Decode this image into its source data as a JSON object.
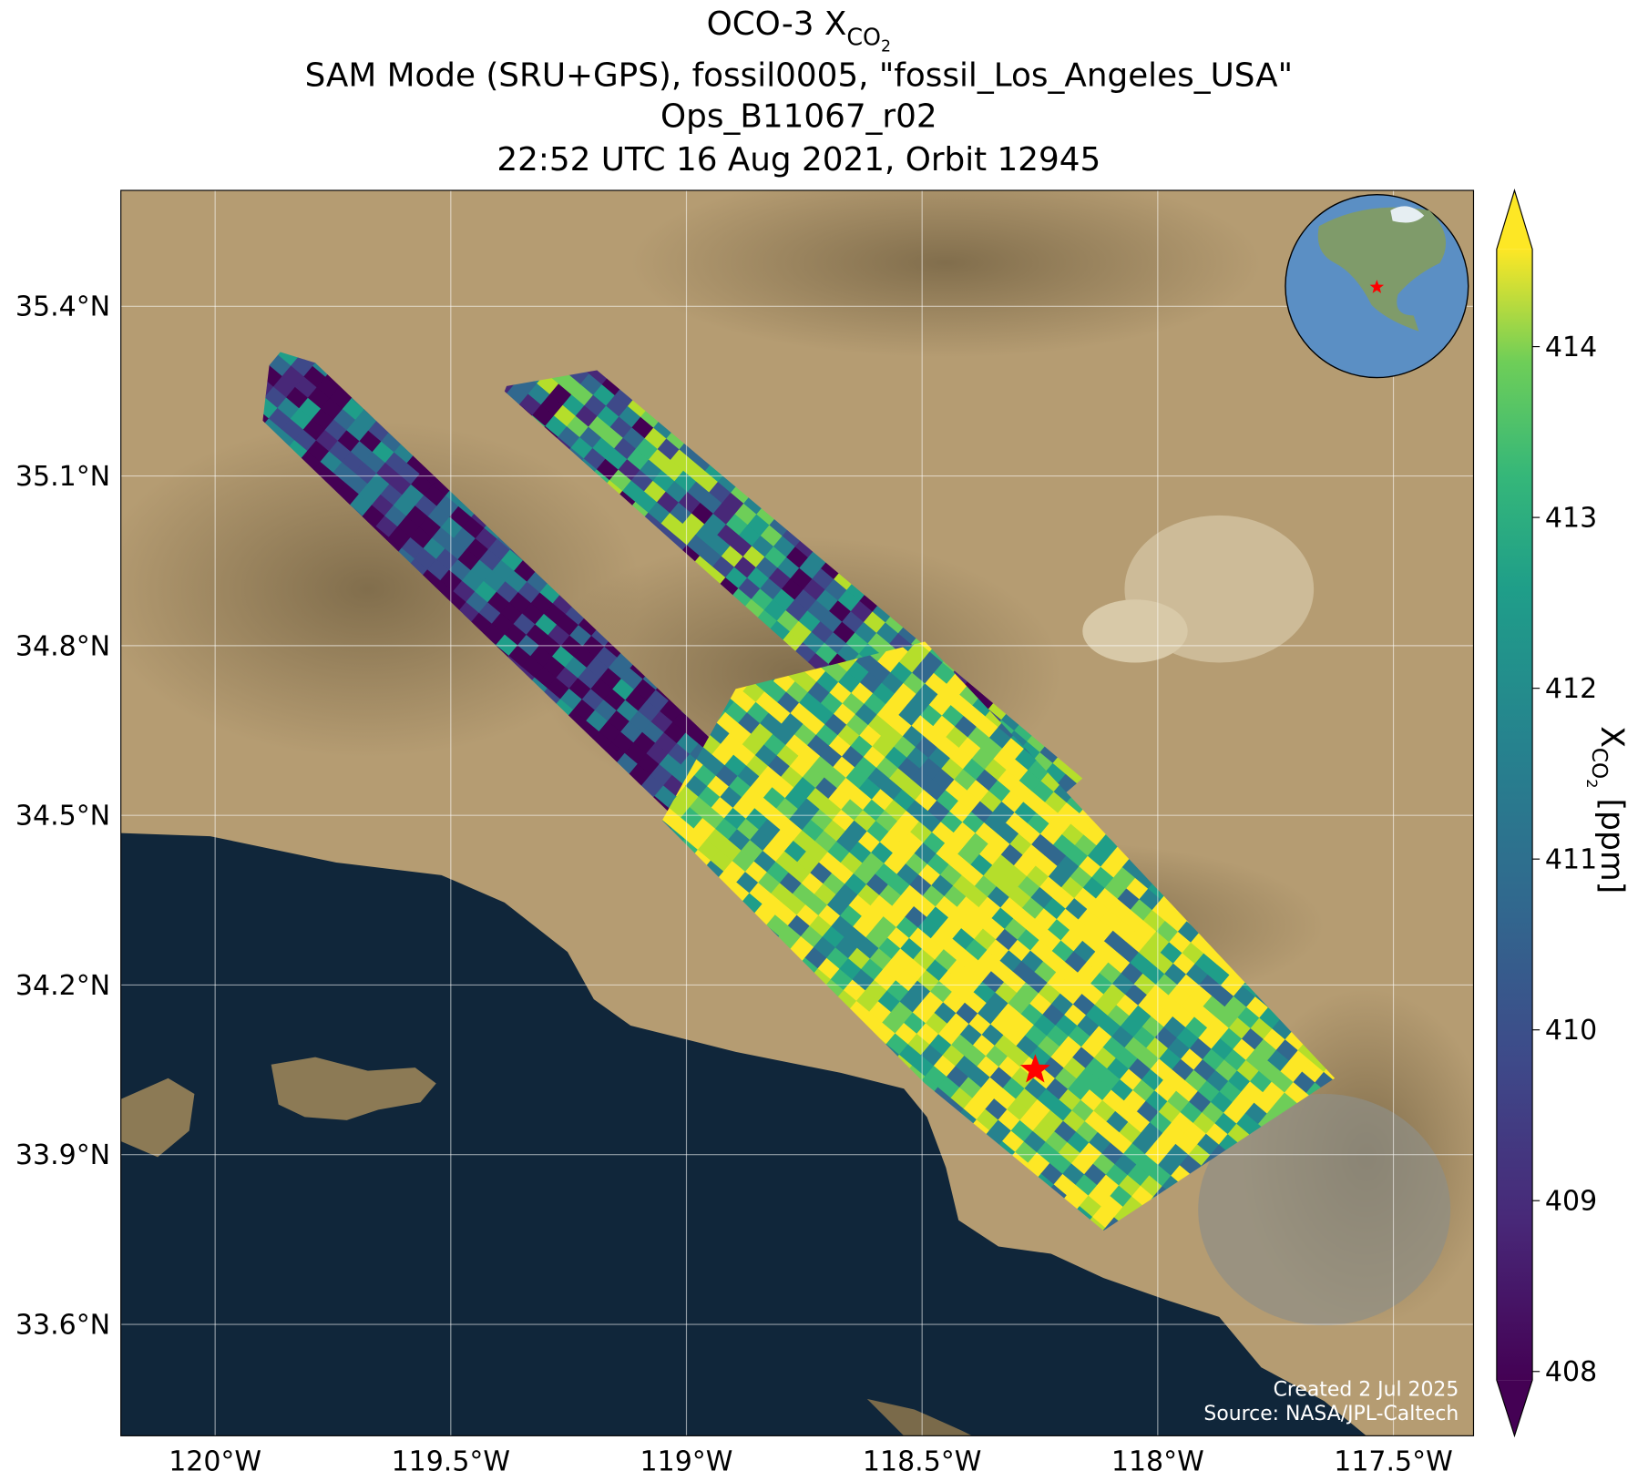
{
  "title": {
    "line1": {
      "text": "OCO-3 X",
      "sub": "CO",
      "subsub": "2"
    },
    "line2": "SAM Mode (SRU+GPS), fossil0005, \"fossil_Los_Angeles_USA\"",
    "line3": "Ops_B11067_r02",
    "line4": "22:52 UTC 16 Aug 2021, Orbit 12945"
  },
  "map": {
    "xlim": [
      -120.2,
      -117.33
    ],
    "ylim": [
      33.403,
      35.605
    ],
    "xticks": [
      {
        "value": -120,
        "label": "120°W"
      },
      {
        "value": -119.5,
        "label": "119.5°W"
      },
      {
        "value": -119,
        "label": "119°W"
      },
      {
        "value": -118.5,
        "label": "118.5°W"
      },
      {
        "value": -118,
        "label": "118°W"
      },
      {
        "value": -117.5,
        "label": "117.5°W"
      }
    ],
    "yticks": [
      {
        "value": 33.6,
        "label": "33.6°N"
      },
      {
        "value": 33.9,
        "label": "33.9°N"
      },
      {
        "value": 34.2,
        "label": "34.2°N"
      },
      {
        "value": 34.5,
        "label": "34.5°N"
      },
      {
        "value": 34.8,
        "label": "34.8°N"
      },
      {
        "value": 35.1,
        "label": "35.1°N"
      },
      {
        "value": 35.4,
        "label": "35.4°N"
      }
    ],
    "grid": true,
    "target": {
      "lon": -118.26,
      "lat": 34.05,
      "color": "#ff0000"
    }
  },
  "colorbar": {
    "lim": [
      407.95,
      414.57
    ],
    "ticks": [
      408,
      409,
      410,
      411,
      412,
      413,
      414
    ],
    "label": {
      "text": "X",
      "sub": "CO",
      "subsub": "2",
      "rest": " [ppm]"
    }
  },
  "credits": {
    "created": "Created 2 Jul 2025",
    "source": "Source: NASA/JPL-Caltech"
  }
}
